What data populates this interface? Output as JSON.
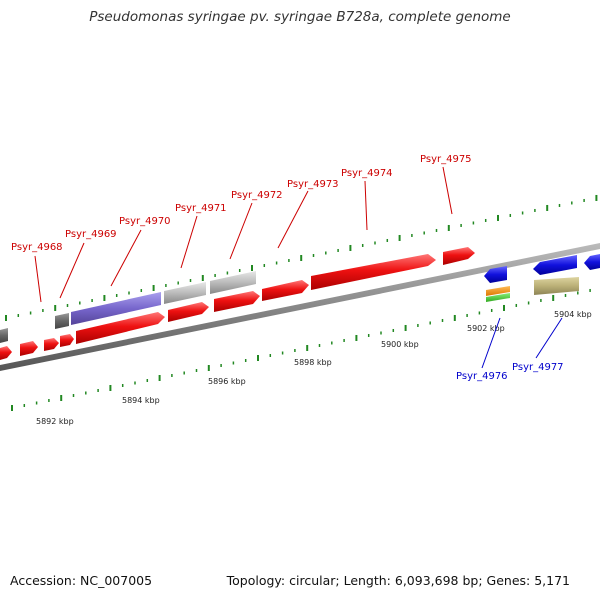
{
  "title": "Pseudomonas syringae pv. syringae B728a, complete genome",
  "footer": {
    "accession": "Accession: NC_007005",
    "summary": "Topology: circular; Length: 6,093,698 bp; Genes: 5,171"
  },
  "colors": {
    "forward_gene": "#ee1111",
    "highlight_gene": "#7766cc",
    "hypothetical_gene": "#bbbbbb",
    "small_gene": "#666666",
    "blue_gene": "#1111dd",
    "orange_gene": "#ee8800",
    "green_gene": "#44cc33",
    "khaki_gene": "#bbb077",
    "tick": "#228822",
    "backbone": "#888888"
  },
  "ticks": [
    {
      "label": "5892 kbp"
    },
    {
      "label": "5894 kbp"
    },
    {
      "label": "5896 kbp"
    },
    {
      "label": "5898 kbp"
    },
    {
      "label": "5900 kbp"
    },
    {
      "label": "5902 kbp"
    },
    {
      "label": "5904 kbp"
    }
  ],
  "gene_labels": [
    {
      "name": "Psyr_4968",
      "color": "#cc0000"
    },
    {
      "name": "Psyr_4969",
      "color": "#cc0000"
    },
    {
      "name": "Psyr_4970",
      "color": "#cc0000"
    },
    {
      "name": "Psyr_4971",
      "color": "#cc0000"
    },
    {
      "name": "Psyr_4972",
      "color": "#cc0000"
    },
    {
      "name": "Psyr_4973",
      "color": "#cc0000"
    },
    {
      "name": "Psyr_4974",
      "color": "#cc0000"
    },
    {
      "name": "Psyr_4975",
      "color": "#cc0000"
    },
    {
      "name": "Psyr_4976",
      "color": "#0000cc"
    },
    {
      "name": "Psyr_4977",
      "color": "#0000cc"
    }
  ]
}
